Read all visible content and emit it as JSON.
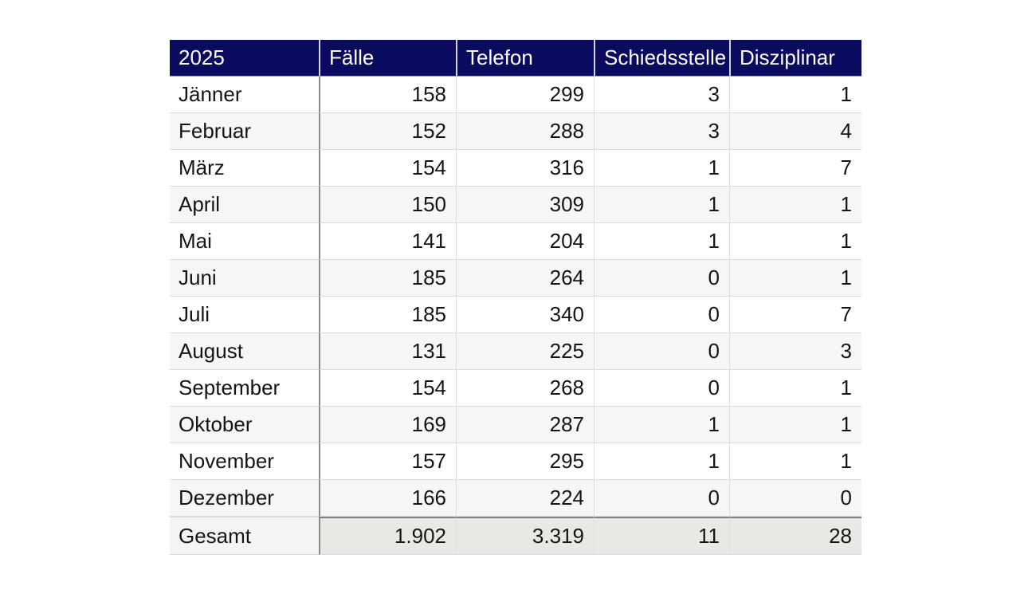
{
  "colors": {
    "page_bg": "#ffffff",
    "header_bg": "#0a0a5e",
    "header_text": "#ffffff",
    "header_divider": "#d4d4d4",
    "header_underline": "#949494",
    "text": "#141414",
    "stripe_bg": "#f6f6f5",
    "light_divider": "#dcdcdc",
    "dark_divider": "#8a8a8a",
    "footer_label_bg": "#f4f4f2",
    "footer_value_bg": "#e8e8e5",
    "footer_topline": "#7f7f7f"
  },
  "chart_data": {
    "type": "table",
    "title": "2025",
    "columns": [
      "2025",
      "Fälle",
      "Telefon",
      "Schiedsstelle",
      "Disziplinar"
    ],
    "rows": [
      {
        "label": "Jänner",
        "values": [
          158,
          299,
          3,
          1
        ]
      },
      {
        "label": "Februar",
        "values": [
          152,
          288,
          3,
          4
        ]
      },
      {
        "label": "März",
        "values": [
          154,
          316,
          1,
          7
        ]
      },
      {
        "label": "April",
        "values": [
          150,
          309,
          1,
          1
        ]
      },
      {
        "label": "Mai",
        "values": [
          141,
          204,
          1,
          1
        ]
      },
      {
        "label": "Juni",
        "values": [
          185,
          264,
          0,
          1
        ]
      },
      {
        "label": "Juli",
        "values": [
          185,
          340,
          0,
          7
        ]
      },
      {
        "label": "August",
        "values": [
          131,
          225,
          0,
          3
        ]
      },
      {
        "label": "September",
        "values": [
          154,
          268,
          0,
          1
        ]
      },
      {
        "label": "Oktober",
        "values": [
          169,
          287,
          1,
          1
        ]
      },
      {
        "label": "November",
        "values": [
          157,
          295,
          1,
          1
        ]
      },
      {
        "label": "Dezember",
        "values": [
          166,
          224,
          0,
          0
        ]
      }
    ],
    "footer": {
      "label": "Gesamt",
      "values": [
        "1.902",
        "3.319",
        "11",
        "28"
      ]
    }
  }
}
